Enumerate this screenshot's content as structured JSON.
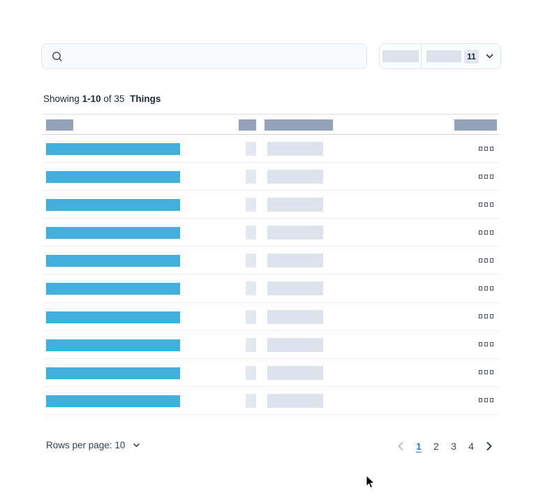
{
  "colors": {
    "accent_blue": "#41b0df",
    "header_block": "#94a3b8",
    "skeleton_light": "#dde3ec",
    "skeleton_lighter": "#e4e9f1",
    "row_divider": "#e9edf1",
    "header_border": "#ccd5de",
    "control_border": "#e2e8f0",
    "control_bg": "#f8fafc",
    "badge_bg": "#e2e8f0",
    "text_dark": "#1e293b",
    "text_medium": "#334155",
    "active_page": "#2b7cd6",
    "disabled_chevron": "#b6c2cf"
  },
  "search": {
    "value": "",
    "placeholder": "",
    "icon": "search-icon"
  },
  "filter": {
    "badge_count": "11",
    "icon": "chevron-down-icon"
  },
  "status": {
    "prefix": "Showing",
    "range": "1-10",
    "middle": "of 35",
    "entity": "Things"
  },
  "table": {
    "header_placeholder_count": 4,
    "rows": [
      {
        "index": 1
      },
      {
        "index": 2
      },
      {
        "index": 3
      },
      {
        "index": 4
      },
      {
        "index": 5
      },
      {
        "index": 6
      },
      {
        "index": 7
      },
      {
        "index": 8
      },
      {
        "index": 9
      },
      {
        "index": 10
      }
    ],
    "row_actions_icon": "ellipsis-squares-icon"
  },
  "pagination": {
    "rows_per_page_label": "Rows per page:",
    "rows_per_page_value": "10",
    "pages": [
      "1",
      "2",
      "3",
      "4"
    ],
    "active_page": "1",
    "prev_icon": "chevron-left-icon",
    "next_icon": "chevron-right-icon"
  }
}
